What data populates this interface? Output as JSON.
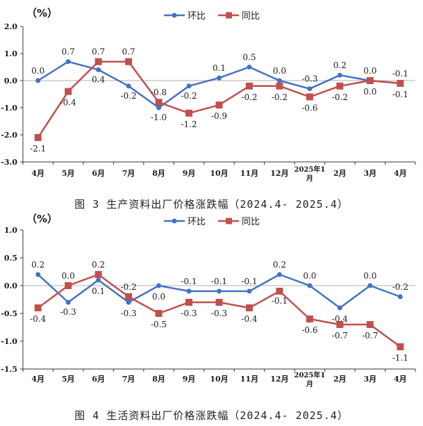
{
  "charts": [
    {
      "caption": "图 3 生产资料出厂价格涨跌幅（2024.4- 2025.4）",
      "unit": "（%）",
      "chart_data": {
        "type": "line",
        "categories": [
          "4月",
          "5月",
          "6月",
          "7月",
          "8月",
          "9月",
          "10月",
          "11月",
          "12月",
          "2025年1月",
          "2月",
          "3月",
          "4月"
        ],
        "series": [
          {
            "name": "环比",
            "color": "#4472C4",
            "marker": "circle",
            "values": [
              0.0,
              0.7,
              0.4,
              -0.2,
              -1.0,
              -0.2,
              0.1,
              0.5,
              0.0,
              -0.3,
              0.2,
              0.0,
              -0.1
            ]
          },
          {
            "name": "同比",
            "color": "#C0504D",
            "marker": "square",
            "values": [
              -2.1,
              -0.4,
              0.7,
              0.7,
              -0.8,
              -1.2,
              -0.9,
              -0.2,
              -0.2,
              -0.6,
              -0.2,
              0.0,
              -0.1
            ]
          }
        ],
        "ylim": [
          -3.0,
          2.0
        ],
        "yticks": [
          -3.0,
          -2.0,
          -1.0,
          0.0,
          1.0,
          2.0
        ],
        "ytick_labels": [
          "-3.0",
          "-2.0",
          "-1.0",
          "0.0",
          "1.0",
          "2.0"
        ],
        "legend": "top-center",
        "grid": false
      }
    },
    {
      "caption": "图 4 生活资料出厂价格涨跌幅（2024.4- 2025.4）",
      "unit": "（%）",
      "chart_data": {
        "type": "line",
        "categories": [
          "4月",
          "5月",
          "6月",
          "7月",
          "8月",
          "9月",
          "10月",
          "11月",
          "12月",
          "2025年1月",
          "2月",
          "3月",
          "4月"
        ],
        "series": [
          {
            "name": "环比",
            "color": "#4472C4",
            "marker": "circle",
            "values": [
              0.2,
              -0.3,
              0.1,
              -0.3,
              0.0,
              -0.1,
              -0.1,
              -0.1,
              0.2,
              0.0,
              -0.4,
              0.0,
              -0.2
            ]
          },
          {
            "name": "同比",
            "color": "#C0504D",
            "marker": "square",
            "values": [
              -0.4,
              0.0,
              0.2,
              -0.2,
              -0.5,
              -0.3,
              -0.3,
              -0.4,
              -0.1,
              -0.6,
              -0.7,
              -0.7,
              -1.1
            ]
          }
        ],
        "ylim": [
          -1.5,
          1.0
        ],
        "yticks": [
          -1.5,
          -1.0,
          -0.5,
          0.0,
          0.5,
          1.0
        ],
        "ytick_labels": [
          "-1.5",
          "-1.0",
          "-0.5",
          "0.0",
          "0.5",
          "1.0"
        ],
        "legend": "top-center",
        "grid": false
      }
    }
  ]
}
